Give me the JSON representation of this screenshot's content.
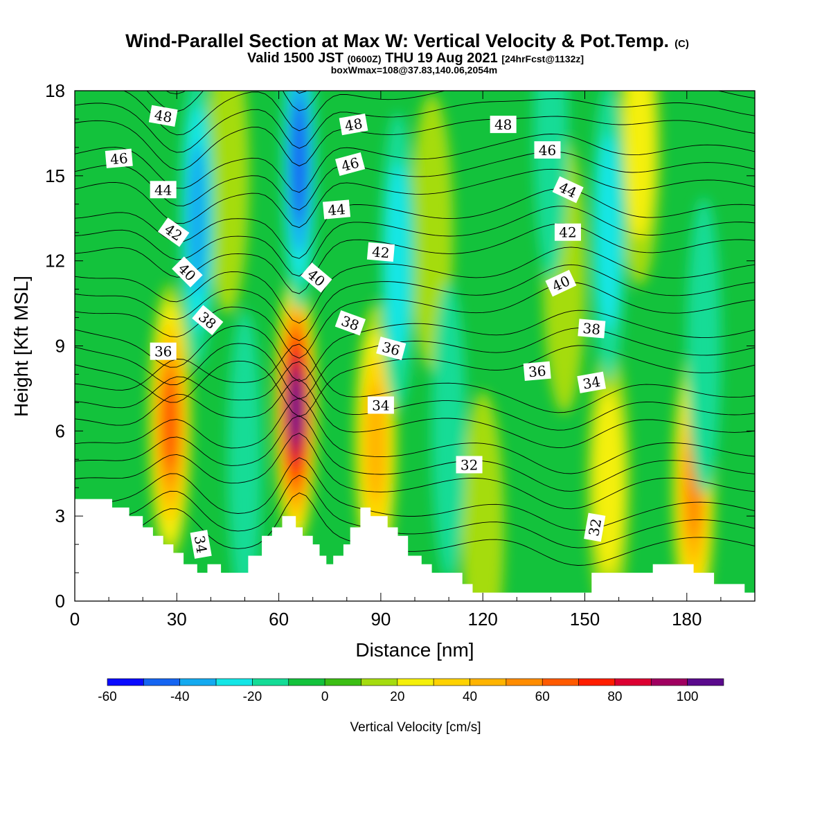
{
  "chart_data": {
    "type": "heatmap",
    "title": "Wind-Parallel Section at Max W: Vertical Velocity & Pot.Temp.",
    "title_mark": "(C)",
    "subtitle_main": "Valid 1500 JST",
    "subtitle_utc": "(0600Z)",
    "subtitle_date": "THU 19 Aug 2021",
    "subtitle_fcst": "[24hrFcst@1132z]",
    "subtitle2": "boxWmax=108@37.83,140.06,2054m",
    "xlabel": "Distance [nm]",
    "ylabel": "Height [Kft MSL]",
    "xlim": [
      0,
      200
    ],
    "ylim": [
      0,
      18
    ],
    "x_ticks": [
      0,
      30,
      60,
      90,
      120,
      150,
      180
    ],
    "y_ticks": [
      0,
      3,
      6,
      9,
      12,
      15,
      18
    ],
    "colorbar": {
      "label": "Vertical Velocity [cm/s]",
      "tick_values": [
        -60,
        -40,
        -20,
        0,
        20,
        40,
        60,
        80,
        100
      ],
      "levels": [
        -60,
        -50,
        -40,
        -30,
        -20,
        -10,
        0,
        10,
        20,
        30,
        40,
        50,
        60,
        70,
        80,
        90,
        100,
        110
      ],
      "colors": [
        "#0a0aff",
        "#1565f2",
        "#14aaf0",
        "#14e6e6",
        "#14dc96",
        "#13c23c",
        "#3cbe14",
        "#a5dc0f",
        "#f5f00a",
        "#ffd200",
        "#ffb400",
        "#ff8c00",
        "#ff5a00",
        "#ff1e00",
        "#dc0032",
        "#a00060",
        "#5a0a8c"
      ]
    },
    "updrafts": [
      {
        "x": 28,
        "z": 6.3,
        "w": 72
      },
      {
        "x": 65,
        "z": 6.8,
        "w": 108
      },
      {
        "x": 88.5,
        "z": 5.6,
        "w": 45
      },
      {
        "x": 157,
        "z": 4.2,
        "w": 30
      },
      {
        "x": 182,
        "z": 4.0,
        "w": 60
      },
      {
        "x": 120,
        "z": 2.5,
        "w": 22
      },
      {
        "x": 166,
        "z": 16,
        "w": 30
      },
      {
        "x": 144,
        "z": 11.5,
        "w": 24
      },
      {
        "x": 105,
        "z": 13,
        "w": 18
      },
      {
        "x": 45,
        "z": 15,
        "w": 15
      }
    ],
    "downdrafts": [
      {
        "x": 36,
        "z": 13.5,
        "w": -40
      },
      {
        "x": 66,
        "z": 15.5,
        "w": -45
      },
      {
        "x": 95,
        "z": 12,
        "w": -25
      },
      {
        "x": 110,
        "z": 6,
        "w": -20
      },
      {
        "x": 50,
        "z": 5,
        "w": -15
      },
      {
        "x": 157,
        "z": 13,
        "w": -25
      },
      {
        "x": 185,
        "z": 9,
        "w": -18
      },
      {
        "x": 140,
        "z": 16.5,
        "w": -15
      }
    ],
    "terrain": {
      "x": [
        0,
        10,
        10,
        11,
        11,
        16,
        16,
        20,
        20,
        23,
        23,
        26,
        26,
        29,
        29,
        32,
        32,
        36,
        36,
        39,
        39,
        43,
        43,
        46,
        46,
        51,
        51,
        55,
        55,
        58,
        58,
        61,
        61,
        65,
        65,
        67,
        67,
        70,
        70,
        72,
        72,
        74,
        74,
        76,
        76,
        79,
        79,
        81,
        81,
        84,
        84,
        87,
        87,
        92,
        92,
        95,
        95,
        98,
        98,
        102,
        102,
        105,
        105,
        108,
        108,
        111,
        111,
        114,
        114,
        117,
        117,
        120,
        120,
        125,
        125,
        135,
        135,
        145,
        145,
        152,
        152,
        160,
        160,
        170,
        170,
        173,
        173,
        182,
        182,
        188,
        188,
        192,
        192,
        197,
        197,
        200
      ],
      "z": [
        3.6,
        3.6,
        3.6,
        3.6,
        3.3,
        3.3,
        3.0,
        3.0,
        2.6,
        2.6,
        2.3,
        2.3,
        2.0,
        2.0,
        1.7,
        1.7,
        1.3,
        1.3,
        1.0,
        1.0,
        1.3,
        1.3,
        1.0,
        1.0,
        1.0,
        1.0,
        1.6,
        1.6,
        2.3,
        2.3,
        2.6,
        2.6,
        3.0,
        3.0,
        2.6,
        2.6,
        2.3,
        2.3,
        2.0,
        2.0,
        1.6,
        1.6,
        1.3,
        1.3,
        1.6,
        1.6,
        2.0,
        2.0,
        2.6,
        2.6,
        3.3,
        3.3,
        3.0,
        3.0,
        2.6,
        2.6,
        2.3,
        2.3,
        1.6,
        1.6,
        1.3,
        1.3,
        1.0,
        1.0,
        1.0,
        1.0,
        1.0,
        1.0,
        0.6,
        0.6,
        0.3,
        0.3,
        0.3,
        0.3,
        0.3,
        0.3,
        0.3,
        0.3,
        0.3,
        0.3,
        1.0,
        1.0,
        1.0,
        1.0,
        1.3,
        1.3,
        1.3,
        1.3,
        1.0,
        1.0,
        0.6,
        0.6,
        0.6,
        0.6,
        0.3,
        0.3
      ]
    },
    "theta_contours": {
      "levels": [
        32,
        34,
        36,
        38,
        40,
        42,
        44,
        46,
        48
      ],
      "labels": [
        {
          "text": "48",
          "x": 26,
          "z": 17.1,
          "angle": 10
        },
        {
          "text": "46",
          "x": 13,
          "z": 15.6,
          "angle": -5
        },
        {
          "text": "44",
          "x": 26,
          "z": 14.5,
          "angle": 0
        },
        {
          "text": "42",
          "x": 29,
          "z": 13.0,
          "angle": 35
        },
        {
          "text": "40",
          "x": 33,
          "z": 11.6,
          "angle": 45
        },
        {
          "text": "38",
          "x": 39,
          "z": 9.9,
          "angle": 40
        },
        {
          "text": "36",
          "x": 26,
          "z": 8.8,
          "angle": 0
        },
        {
          "text": "34",
          "x": 37,
          "z": 2.0,
          "angle": 80
        },
        {
          "text": "48",
          "x": 82,
          "z": 16.8,
          "angle": -10
        },
        {
          "text": "46",
          "x": 81,
          "z": 15.4,
          "angle": -15
        },
        {
          "text": "44",
          "x": 77,
          "z": 13.8,
          "angle": -5
        },
        {
          "text": "40",
          "x": 71,
          "z": 11.4,
          "angle": 40
        },
        {
          "text": "42",
          "x": 90,
          "z": 12.3,
          "angle": 5
        },
        {
          "text": "38",
          "x": 81,
          "z": 9.8,
          "angle": 20
        },
        {
          "text": "36",
          "x": 93,
          "z": 8.9,
          "angle": 15
        },
        {
          "text": "34",
          "x": 90,
          "z": 6.9,
          "angle": 0
        },
        {
          "text": "32",
          "x": 116,
          "z": 4.8,
          "angle": 0
        },
        {
          "text": "48",
          "x": 126,
          "z": 16.8,
          "angle": 0
        },
        {
          "text": "46",
          "x": 139,
          "z": 15.9,
          "angle": 0
        },
        {
          "text": "44",
          "x": 145,
          "z": 14.5,
          "angle": 25
        },
        {
          "text": "42",
          "x": 145,
          "z": 13.0,
          "angle": 0
        },
        {
          "text": "40",
          "x": 143,
          "z": 11.2,
          "angle": -25
        },
        {
          "text": "38",
          "x": 152,
          "z": 9.6,
          "angle": 5
        },
        {
          "text": "36",
          "x": 136,
          "z": 8.1,
          "angle": -5
        },
        {
          "text": "34",
          "x": 152,
          "z": 7.7,
          "angle": -10
        },
        {
          "text": "32",
          "x": 153,
          "z": 2.6,
          "angle": -80
        }
      ]
    }
  }
}
